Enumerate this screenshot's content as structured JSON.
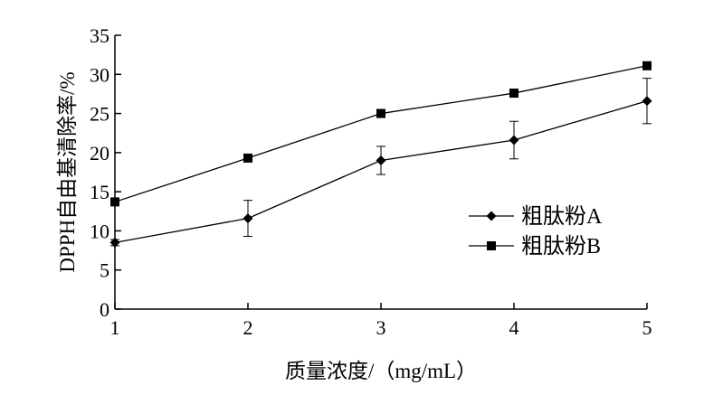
{
  "chart_data": {
    "type": "line",
    "title": "",
    "xlabel": "质量浓度/（mg/mL）",
    "ylabel": "DPPH自由基清除率/%",
    "x": [
      1,
      2,
      3,
      4,
      5
    ],
    "xlim": [
      1,
      5
    ],
    "ylim": [
      0,
      35
    ],
    "xticks": [
      "1",
      "2",
      "3",
      "4",
      "5"
    ],
    "yticks": [
      "0",
      "5",
      "10",
      "15",
      "20",
      "25",
      "30",
      "35"
    ],
    "grid": false,
    "legend_position": "center-right",
    "series": [
      {
        "name": "粗肽粉A",
        "marker": "diamond",
        "color": "#000000",
        "values": [
          8.5,
          11.6,
          19.0,
          21.6,
          26.6
        ],
        "error": [
          0.4,
          2.3,
          1.8,
          2.4,
          2.9
        ]
      },
      {
        "name": "粗肽粉B",
        "marker": "square",
        "color": "#000000",
        "values": [
          13.7,
          19.3,
          25.0,
          27.6,
          31.1
        ],
        "error": [
          0.4,
          0.4,
          0.5,
          0.5,
          0.4
        ]
      }
    ]
  }
}
